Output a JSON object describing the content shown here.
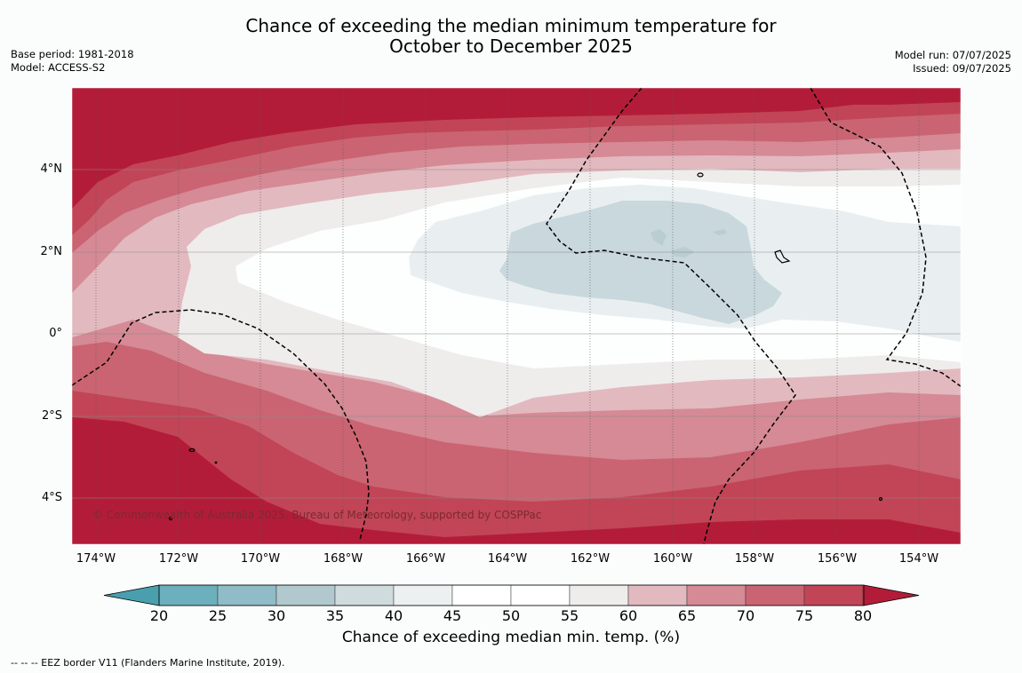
{
  "header": {
    "title_line1": "Chance of exceeding the median minimum temperature for",
    "title_line2": "October to December 2025",
    "base_period": "Base period: 1981-2018",
    "model": "Model: ACCESS-S2",
    "model_run": "Model run: 07/07/2025",
    "issued": "Issued: 09/07/2025"
  },
  "map": {
    "longitude_labels": [
      "174°W",
      "172°W",
      "170°W",
      "168°W",
      "166°W",
      "164°W",
      "162°W",
      "160°W",
      "158°W",
      "156°W",
      "154°W"
    ],
    "latitude_labels": [
      "4°N",
      "2°N",
      "0°",
      "2°S",
      "4°S"
    ],
    "copyright": "© Commonwealth of Australia 2025, Bureau of Meteorology, supported by COSPPac"
  },
  "colorbar": {
    "ticks": [
      "20",
      "25",
      "30",
      "35",
      "40",
      "45",
      "50",
      "55",
      "60",
      "65",
      "70",
      "75",
      "80"
    ],
    "colors": [
      "#4a9fae",
      "#6cafbd",
      "#8fbcc6",
      "#b1c9ce",
      "#cfdbdd",
      "#ecf0f1",
      "#ffffff",
      "#ffffff",
      "#efecec",
      "#e2b9bf",
      "#d58a95",
      "#ca6472",
      "#c14556",
      "#b31c38"
    ],
    "title": "Chance of exceeding median min. temp. (%)"
  },
  "footnote": "--  --  -- EEZ border V11 (Flanders Marine Institute, 2019)."
}
